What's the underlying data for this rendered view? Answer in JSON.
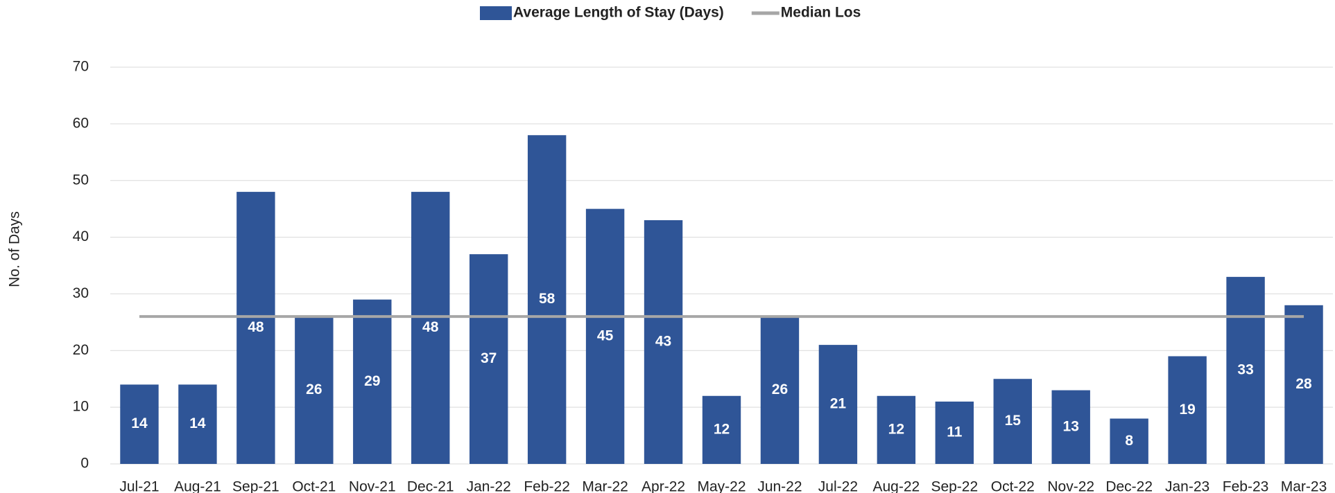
{
  "chart_data": {
    "type": "bar",
    "ylabel": "No. of Days",
    "categories": [
      "Jul-21",
      "Aug-21",
      "Sep-21",
      "Oct-21",
      "Nov-21",
      "Dec-21",
      "Jan-22",
      "Feb-22",
      "Mar-22",
      "Apr-22",
      "May-22",
      "Jun-22",
      "Jul-22",
      "Aug-22",
      "Sep-22",
      "Oct-22",
      "Nov-22",
      "Dec-22",
      "Jan-23",
      "Feb-23",
      "Mar-23"
    ],
    "series": [
      {
        "name": "Average Length of Stay (Days)",
        "type": "bar",
        "color": "#2f5597",
        "values": [
          14,
          14,
          48,
          26,
          29,
          48,
          37,
          58,
          45,
          43,
          12,
          26,
          21,
          12,
          11,
          15,
          13,
          8,
          19,
          33,
          28
        ]
      },
      {
        "name": "Median Los",
        "type": "line",
        "color": "#a6a6a6",
        "values": [
          26,
          26,
          26,
          26,
          26,
          26,
          26,
          26,
          26,
          26,
          26,
          26,
          26,
          26,
          26,
          26,
          26,
          26,
          26,
          26,
          26
        ]
      }
    ],
    "ylim": [
      0,
      70
    ],
    "yticks": [
      0,
      10,
      20,
      30,
      40,
      50,
      60,
      70
    ],
    "grid": true
  }
}
